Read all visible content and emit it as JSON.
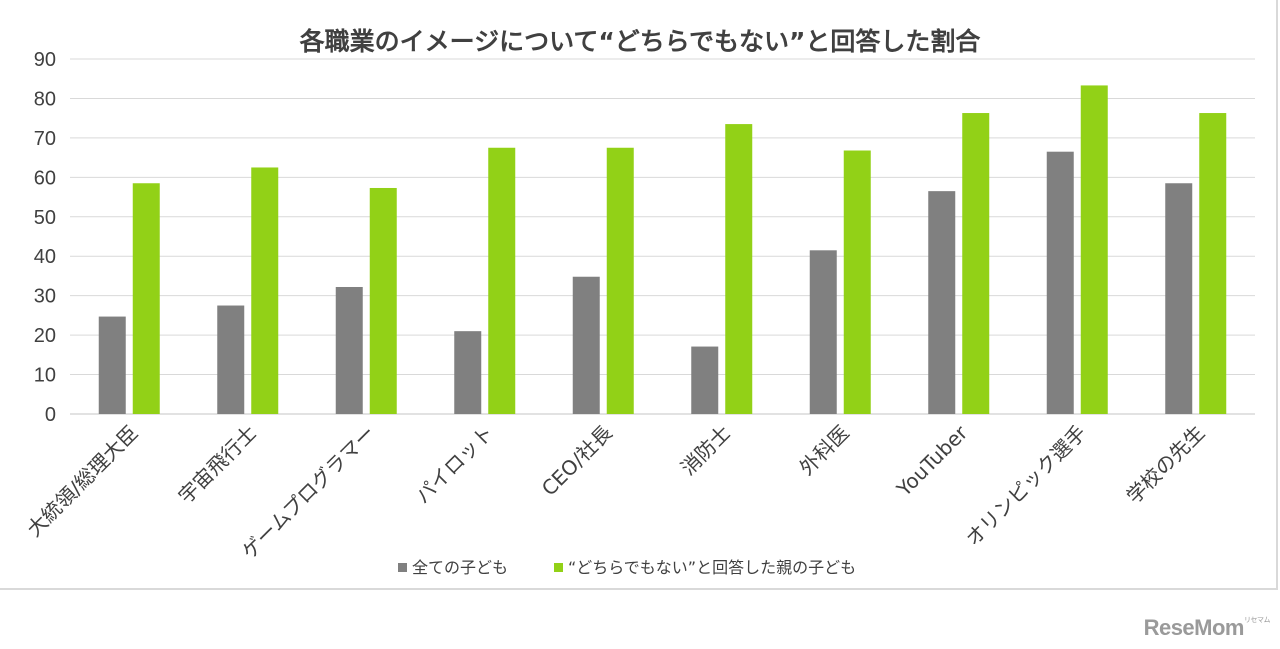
{
  "chart_data": {
    "type": "bar",
    "title": "各職業のイメージについて“どちらでもない”と回答した割合",
    "categories": [
      "大統領/総理大臣",
      "宇宙飛行士",
      "ゲームプログラマー",
      "パイロット",
      "CEO/社長",
      "消防士",
      "外科医",
      "YouTuber",
      "オリンピック選手",
      "学校の先生"
    ],
    "series": [
      {
        "name": "全ての子ども",
        "color": "#808080",
        "values": [
          24.7,
          27.5,
          32.2,
          21.0,
          34.8,
          17.1,
          41.5,
          56.5,
          66.5,
          58.5
        ]
      },
      {
        "name": "“どちらでもない”と回答した親の子ども",
        "color": "#92d117",
        "values": [
          58.5,
          62.5,
          57.3,
          67.5,
          67.5,
          73.5,
          66.8,
          76.3,
          83.3,
          76.3
        ]
      }
    ],
    "ylim": [
      0,
      90
    ],
    "yticks": [
      0,
      10,
      20,
      30,
      40,
      50,
      60,
      70,
      80,
      90
    ],
    "grid": true,
    "legend_position": "bottom",
    "gridline_color": "#d9d9d9"
  },
  "watermark": {
    "main": "ReseMom",
    "small": "リセマム"
  }
}
